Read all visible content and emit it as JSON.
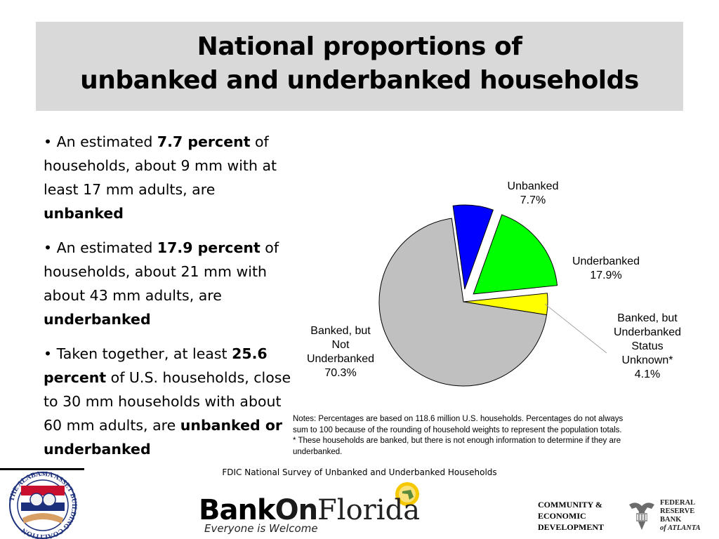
{
  "title": {
    "line1": "National proportions of",
    "line2": "unbanked and underbanked households"
  },
  "bullets": [
    {
      "marker": "•",
      "before": "An estimated ",
      "bold1": "7.7 percent",
      "middle": " of households, about 9 mm with at least 17 mm adults, are ",
      "bold2": "unbanked"
    },
    {
      "marker": "•",
      "before": "An estimated ",
      "bold1": "17.9 percent",
      "middle": " of households, about 21 mm with about 43 mm adults, are ",
      "bold2": "underbanked"
    },
    {
      "marker": "•",
      "before": "Taken together, at least ",
      "bold1": "25.6 percent",
      "middle": " of U.S. households, close to 30 mm households with about 60 mm adults, are ",
      "bold2": "unbanked or underbanked"
    }
  ],
  "chart_data": {
    "type": "pie",
    "start_angle_deg": -8,
    "slices": [
      {
        "label": [
          "Unbanked",
          "7.7%"
        ],
        "value": 7.7,
        "color": "#0000ff",
        "exploded": true
      },
      {
        "label": [
          "Underbanked",
          "17.9%"
        ],
        "value": 17.9,
        "color": "#00ff00",
        "exploded": true
      },
      {
        "label": [
          "Banked, but",
          "Underbanked",
          "Status",
          "Unknown*",
          "4.1%"
        ],
        "value": 4.1,
        "color": "#ffff00",
        "exploded": false
      },
      {
        "label": [
          "Banked, but",
          "Not",
          "Underbanked",
          "70.3%"
        ],
        "value": 70.3,
        "color": "#c0c0c0",
        "exploded": false
      }
    ]
  },
  "notes": {
    "line1": "Notes: Percentages are based on 118.6 million U.S. households. Percentages do not always",
    "line2": "sum to 100 because of the rounding of household weights to represent the population totals.",
    "line3": "* These households are banked, but there is not enough information to determine if they are",
    "line4": "underbanked."
  },
  "source": "FDIC National Survey of Unbanked and Underbanked Households",
  "logos": {
    "aac_ring_text": "THE ALABAMA ASSET BUILDING COALITION",
    "bankonflorida": {
      "bank": "Bank",
      "on": "On",
      "florida": "Florida",
      "tagline": "Everyone is Welcome"
    },
    "ced": [
      "COMMUNITY &",
      "ECONOMIC",
      "DEVELOPMENT"
    ],
    "frb": [
      "FEDERAL",
      "RESERVE",
      "BANK",
      "of ATLANTA"
    ]
  },
  "colors": {
    "title_band": "#d9d9d9",
    "unbanked": "#0000ff",
    "underbanked": "#00ff00",
    "unknown": "#ffff00",
    "not_underbanked": "#c0c0c0"
  }
}
